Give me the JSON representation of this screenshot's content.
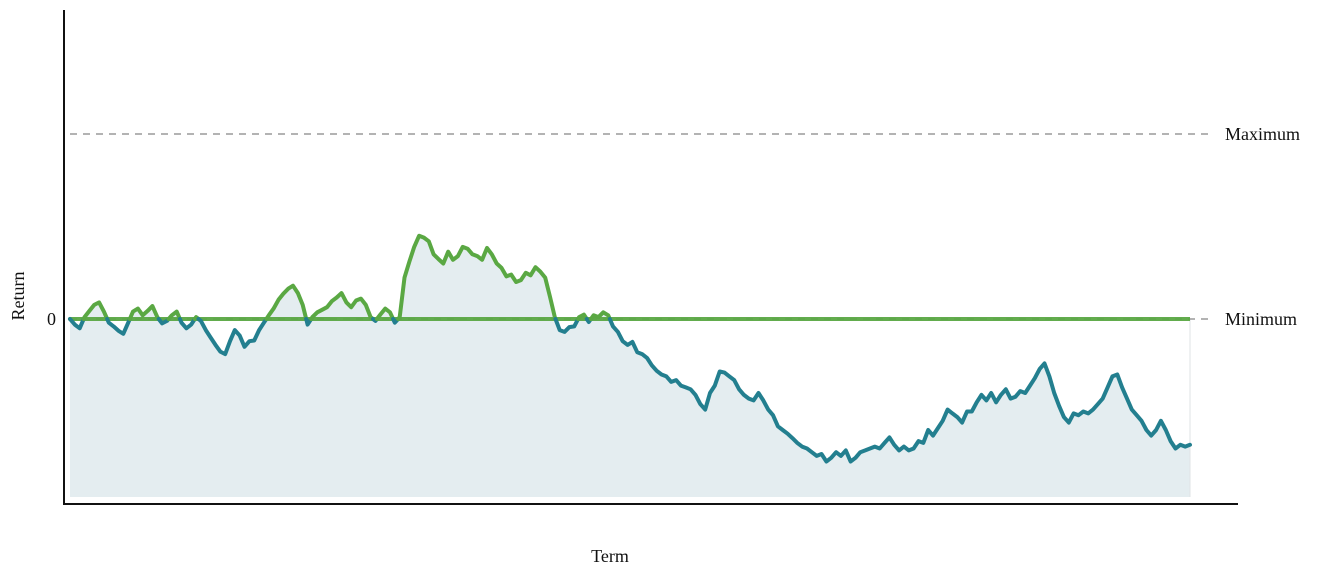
{
  "chart_data": {
    "type": "line",
    "title": "",
    "xlabel": "Term",
    "ylabel": "Return",
    "y_ticks": [
      {
        "value": 0,
        "label": "0"
      }
    ],
    "reference_lines": [
      {
        "name": "maximum",
        "label": "Maximum",
        "value": 5.0,
        "style": "dashed"
      },
      {
        "name": "minimum",
        "label": "Minimum",
        "value": 0,
        "style": "dashed"
      }
    ],
    "xlim": [
      0,
      250
    ],
    "ylim": [
      -5.4,
      9.3
    ],
    "grid": false,
    "legend": "none",
    "colors": {
      "return_line": "#237f8f",
      "floor_line": "#5aa843",
      "area_fill": "#e4edf0",
      "reference": "#9a9a9a",
      "axis": "#111111"
    },
    "series": [
      {
        "values": [
          0,
          -0.15,
          -0.25,
          0.05,
          0.22,
          0.38,
          0.45,
          0.2,
          -0.1,
          -0.2,
          -0.32,
          -0.4,
          -0.1,
          0.2,
          0.28,
          0.1,
          0.22,
          0.35,
          0.05,
          -0.12,
          -0.05,
          0.1,
          0.2,
          -0.1,
          -0.25,
          -0.15,
          0.05,
          -0.05,
          -0.3,
          -0.5,
          -0.7,
          -0.88,
          -0.95,
          -0.6,
          -0.3,
          -0.45,
          -0.75,
          -0.6,
          -0.58,
          -0.3,
          -0.1,
          0.1,
          0.28,
          0.52,
          0.68,
          0.82,
          0.9,
          0.7,
          0.38,
          -0.15,
          0.05,
          0.18,
          0.25,
          0.32,
          0.48,
          0.58,
          0.7,
          0.45,
          0.32,
          0.5,
          0.55,
          0.38,
          0.05,
          -0.05,
          0.12,
          0.28,
          0.18,
          -0.1,
          0.05,
          1.12,
          1.55,
          1.95,
          2.25,
          2.2,
          2.1,
          1.75,
          1.62,
          1.5,
          1.82,
          1.6,
          1.7,
          1.95,
          1.9,
          1.75,
          1.7,
          1.6,
          1.92,
          1.75,
          1.5,
          1.38,
          1.15,
          1.2,
          1.0,
          1.05,
          1.25,
          1.18,
          1.4,
          1.28,
          1.12,
          0.6,
          0.05,
          -0.3,
          -0.35,
          -0.22,
          -0.2,
          0.05,
          0.12,
          -0.08,
          0.1,
          0.05,
          0.18,
          0.1,
          -0.2,
          -0.35,
          -0.6,
          -0.7,
          -0.62,
          -0.9,
          -0.95,
          -1.05,
          -1.25,
          -1.4,
          -1.5,
          -1.55,
          -1.7,
          -1.65,
          -1.8,
          -1.85,
          -1.9,
          -2.05,
          -2.3,
          -2.45,
          -2.0,
          -1.8,
          -1.42,
          -1.45,
          -1.55,
          -1.65,
          -1.9,
          -2.05,
          -2.15,
          -2.2,
          -2.0,
          -2.2,
          -2.45,
          -2.6,
          -2.9,
          -3.0,
          -3.1,
          -3.22,
          -3.35,
          -3.45,
          -3.5,
          -3.6,
          -3.7,
          -3.65,
          -3.85,
          -3.75,
          -3.6,
          -3.7,
          -3.55,
          -3.85,
          -3.75,
          -3.6,
          -3.55,
          -3.5,
          -3.45,
          -3.5,
          -3.35,
          -3.2,
          -3.4,
          -3.55,
          -3.45,
          -3.55,
          -3.5,
          -3.3,
          -3.35,
          -3.0,
          -3.15,
          -2.95,
          -2.75,
          -2.45,
          -2.55,
          -2.65,
          -2.8,
          -2.5,
          -2.5,
          -2.25,
          -2.05,
          -2.2,
          -2.0,
          -2.25,
          -2.05,
          -1.9,
          -2.15,
          -2.1,
          -1.95,
          -2.0,
          -1.8,
          -1.6,
          -1.35,
          -1.2,
          -1.55,
          -2.0,
          -2.35,
          -2.65,
          -2.8,
          -2.55,
          -2.6,
          -2.5,
          -2.55,
          -2.45,
          -2.3,
          -2.15,
          -1.85,
          -1.55,
          -1.5,
          -1.85,
          -2.15,
          -2.45,
          -2.6,
          -2.75,
          -3.0,
          -3.15,
          -3.0,
          -2.75,
          -3.0,
          -3.3,
          -3.5,
          -3.4,
          -3.45,
          -3.4
        ]
      }
    ]
  }
}
